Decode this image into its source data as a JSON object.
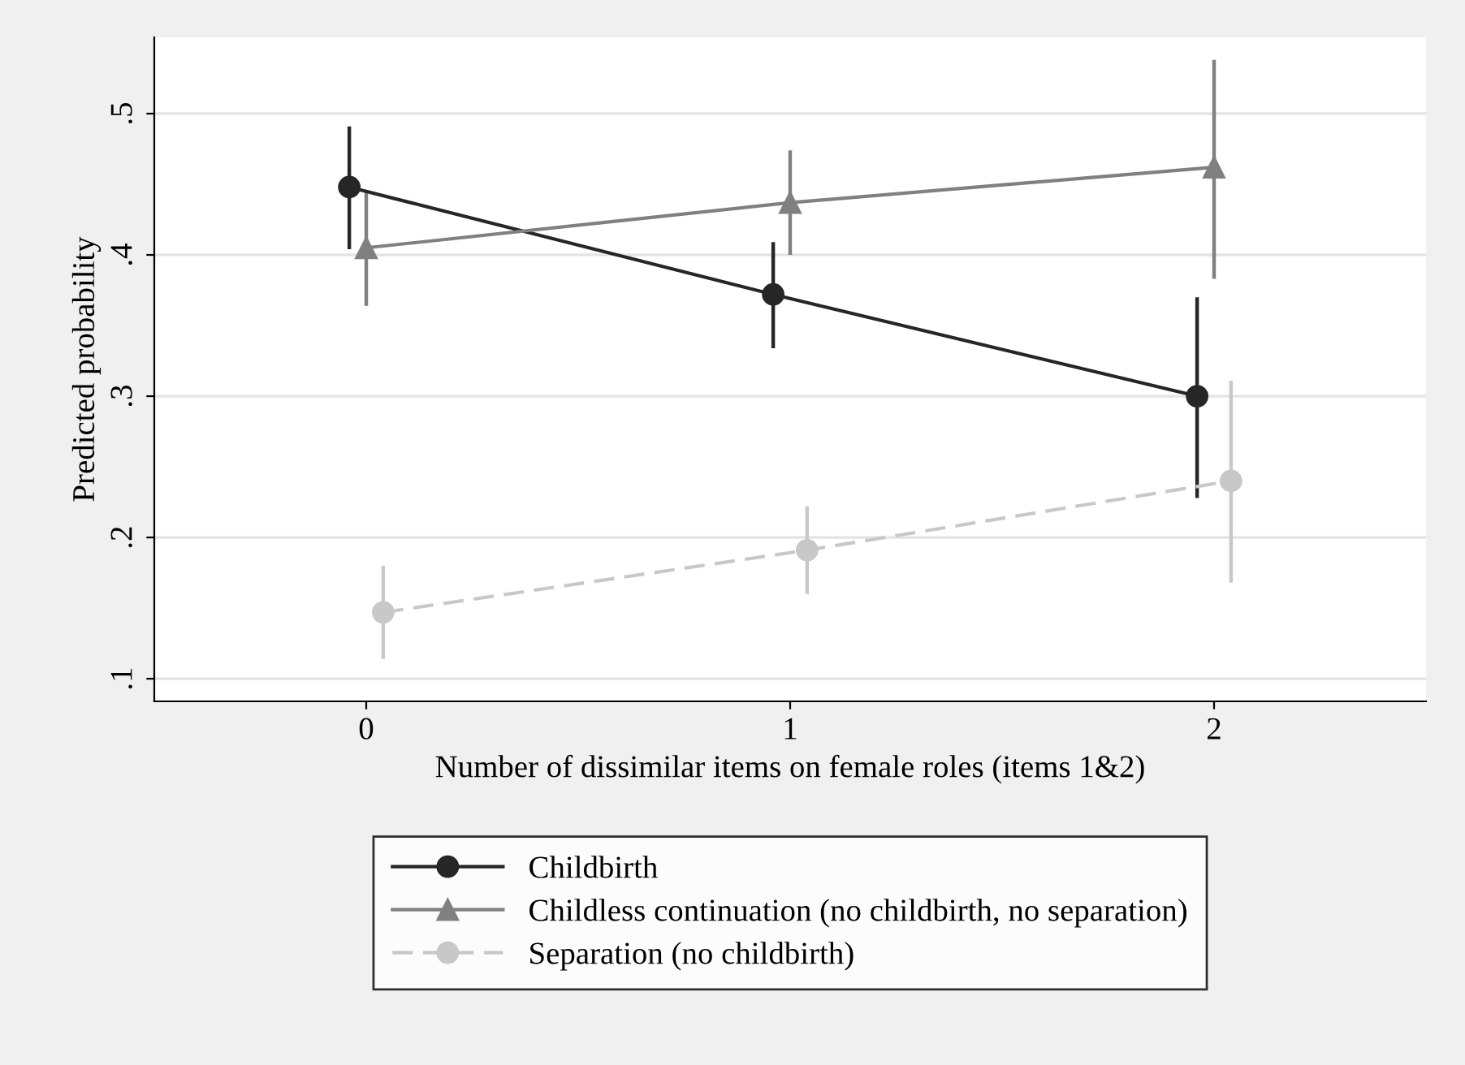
{
  "chart_data": {
    "type": "line",
    "xlabel": "Number of dissimilar items on female roles (items 1&2)",
    "ylabel": "Predicted probability",
    "xlim": [
      -0.5,
      2.5
    ],
    "xticks": [
      0,
      1,
      2
    ],
    "ylim": [
      0.084,
      0.554
    ],
    "yticks": [
      {
        "value": 0.1,
        "label": ".1"
      },
      {
        "value": 0.2,
        "label": ".2"
      },
      {
        "value": 0.3,
        "label": ".3"
      },
      {
        "value": 0.4,
        "label": ".4"
      },
      {
        "value": 0.5,
        "label": ".5"
      }
    ],
    "grid": "y",
    "legend": "bottom",
    "series": [
      {
        "name": "Childbirth",
        "color": "#262626",
        "marker": "circle",
        "line_style": "solid",
        "x": [
          -0.04,
          0.96,
          1.96
        ],
        "values": [
          0.448,
          0.372,
          0.3
        ],
        "errors": [
          [
            0.404,
            0.491
          ],
          [
            0.334,
            0.409
          ],
          [
            0.228,
            0.37
          ]
        ]
      },
      {
        "name": "Childless continuation (no childbirth, no separation)",
        "color": "#808080",
        "marker": "triangle",
        "line_style": "solid",
        "x": [
          0,
          1,
          2
        ],
        "values": [
          0.405,
          0.437,
          0.462
        ],
        "errors": [
          [
            0.364,
            0.446
          ],
          [
            0.4,
            0.474
          ],
          [
            0.383,
            0.538
          ]
        ]
      },
      {
        "name": "Separation (no childbirth)",
        "color": "#c8c8c8",
        "marker": "circle",
        "line_style": "dashed",
        "x": [
          0.04,
          1.04,
          2.04
        ],
        "values": [
          0.147,
          0.191,
          0.24
        ],
        "errors": [
          [
            0.114,
            0.18
          ],
          [
            0.16,
            0.222
          ],
          [
            0.168,
            0.311
          ]
        ]
      }
    ]
  }
}
